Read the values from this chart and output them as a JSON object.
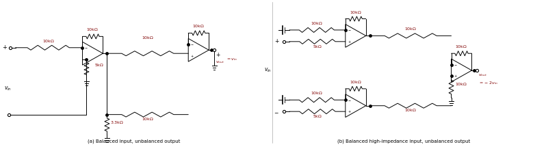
{
  "fig_width": 7.98,
  "fig_height": 2.21,
  "dpi": 100,
  "bg_color": "#ffffff",
  "line_color": "#000000",
  "label_color": "#800000",
  "text_color": "#000000",
  "caption_a": "(a) Balanced input, unbalanced output",
  "caption_b": "(b) Balanced high-impedance input, unbalanced output"
}
